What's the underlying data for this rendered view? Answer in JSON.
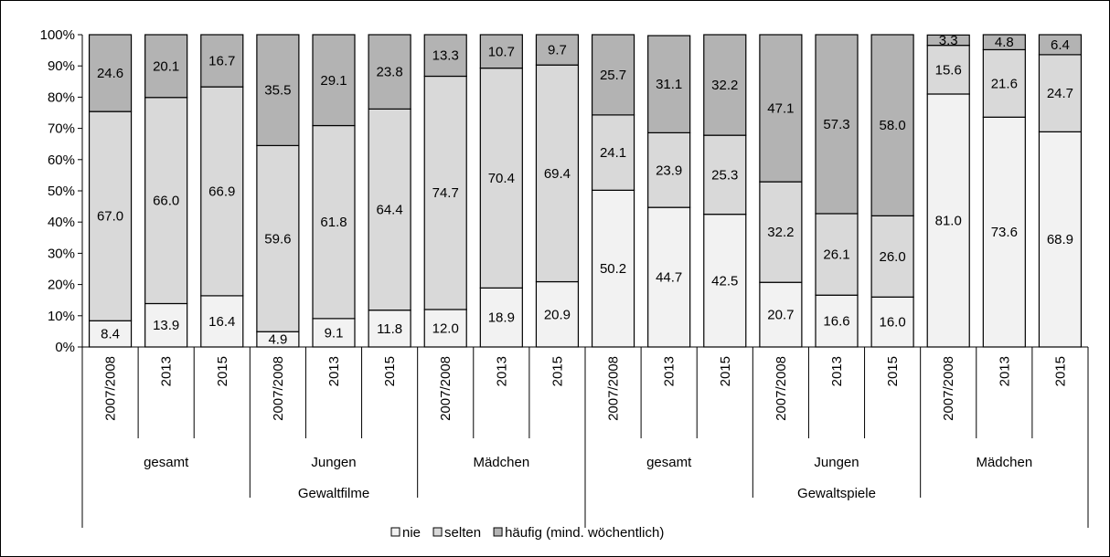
{
  "chart_data": {
    "type": "bar",
    "stacked": true,
    "normalized": true,
    "title": "",
    "xlabel": "",
    "ylabel": "",
    "ylim": [
      0,
      100
    ],
    "y_ticks": [
      "0%",
      "10%",
      "20%",
      "30%",
      "40%",
      "50%",
      "60%",
      "70%",
      "80%",
      "90%",
      "100%"
    ],
    "grid": false,
    "legend_position": "bottom",
    "categories": [
      "2007/2008",
      "2013",
      "2015",
      "2007/2008",
      "2013",
      "2015",
      "2007/2008",
      "2013",
      "2015",
      "2007/2008",
      "2013",
      "2015",
      "2007/2008",
      "2013",
      "2015",
      "2007/2008",
      "2013",
      "2015"
    ],
    "subgroups": [
      "gesamt",
      "Jungen",
      "Mädchen",
      "gesamt",
      "Jungen",
      "Mädchen"
    ],
    "groups": [
      "Gewaltfilme",
      "Gewaltspiele"
    ],
    "series": [
      {
        "name": "nie",
        "color": "#f2f2f2",
        "values": [
          8.4,
          13.9,
          16.4,
          4.9,
          9.1,
          11.8,
          12.0,
          18.9,
          20.9,
          50.2,
          44.7,
          42.5,
          20.7,
          16.6,
          16.0,
          81.0,
          73.6,
          68.9
        ]
      },
      {
        "name": "selten",
        "color": "#d9d9d9",
        "values": [
          67.0,
          66.0,
          66.9,
          59.6,
          61.8,
          64.4,
          74.7,
          70.4,
          69.4,
          24.1,
          23.9,
          25.3,
          32.2,
          26.1,
          26.0,
          15.6,
          21.6,
          24.7
        ]
      },
      {
        "name": "häufig (mind. wöchentlich)",
        "color": "#b3b3b3",
        "values": [
          24.6,
          20.1,
          16.7,
          35.5,
          29.1,
          23.8,
          13.3,
          10.7,
          9.7,
          25.7,
          31.1,
          32.2,
          47.1,
          57.3,
          58.0,
          3.3,
          4.8,
          6.4
        ]
      }
    ]
  }
}
